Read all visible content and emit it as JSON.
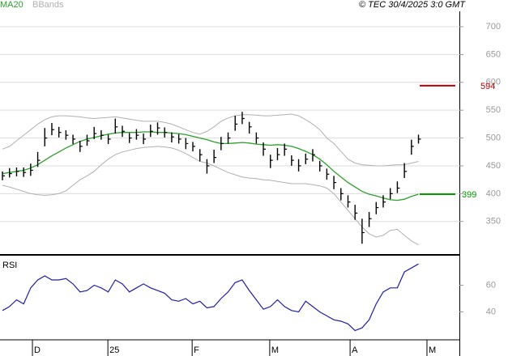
{
  "header": {
    "legend": [
      {
        "name": "MA20",
        "color": "#2ca02c"
      },
      {
        "name": "BBands",
        "color": "#b0b0b0"
      }
    ],
    "source": "© TEC 30/4/2025 3:0 GMT"
  },
  "chart_data": [
    {
      "type": "ohlc",
      "color": "#000000",
      "grid": true,
      "ylim": [
        290,
        748
      ],
      "yticks": [
        350,
        400,
        450,
        500,
        550,
        600,
        650,
        700
      ],
      "xlim": [
        -0.35,
        64.8
      ],
      "xticks": [
        {
          "value": 4.25,
          "label": "D"
        },
        {
          "value": 14.95,
          "label": "25"
        },
        {
          "value": 26.9,
          "label": "F"
        },
        {
          "value": 37.9,
          "label": "M"
        },
        {
          "value": 49.3,
          "label": "A"
        },
        {
          "value": 60.2,
          "label": "M"
        }
      ],
      "close": [
        432,
        436,
        440,
        438,
        442,
        460,
        500,
        515,
        510,
        505,
        498,
        485,
        495,
        508,
        505,
        498,
        520,
        512,
        500,
        505,
        498,
        512,
        518,
        510,
        502,
        498,
        490,
        485,
        470,
        450,
        465,
        490,
        500,
        525,
        535,
        520,
        500,
        480,
        460,
        470,
        480,
        460,
        450,
        462,
        470,
        450,
        435,
        420,
        400,
        385,
        365,
        330,
        355,
        375,
        385,
        400,
        410,
        440,
        485,
        498
      ],
      "high": [
        440,
        446,
        447,
        447,
        454,
        475,
        518,
        527,
        520,
        514,
        506,
        495,
        506,
        520,
        514,
        506,
        535,
        522,
        509,
        516,
        508,
        524,
        528,
        519,
        510,
        507,
        500,
        493,
        480,
        462,
        479,
        502,
        510,
        540,
        547,
        529,
        510,
        492,
        470,
        482,
        490,
        469,
        462,
        472,
        480,
        459,
        445,
        432,
        410,
        397,
        380,
        355,
        367,
        385,
        397,
        410,
        422,
        455,
        497,
        506
      ],
      "low": [
        424,
        429,
        431,
        430,
        432,
        448,
        485,
        505,
        501,
        497,
        489,
        475,
        486,
        498,
        497,
        489,
        508,
        502,
        491,
        497,
        489,
        502,
        506,
        501,
        492,
        490,
        480,
        476,
        458,
        436,
        455,
        478,
        490,
        513,
        525,
        508,
        490,
        468,
        446,
        460,
        468,
        450,
        440,
        453,
        458,
        440,
        425,
        408,
        388,
        375,
        353,
        310,
        340,
        363,
        375,
        390,
        401,
        428,
        470,
        490
      ],
      "ma": {
        "name": "MA20",
        "color": "#2ca02c",
        "values": [
          436,
          438,
          440,
          442,
          446,
          452,
          460,
          468,
          475,
          482,
          488,
          494,
          498,
          501,
          504,
          507,
          509,
          510,
          510,
          510,
          511,
          511,
          510,
          510,
          509,
          508,
          506,
          503,
          500,
          497,
          493,
          490,
          490,
          491,
          492,
          491,
          489,
          488,
          487,
          488,
          487,
          485,
          481,
          476,
          470,
          462,
          452,
          440,
          430,
          420,
          412,
          404,
          399,
          396,
          392,
          389,
          388,
          390,
          395,
          399
        ]
      },
      "bbands": {
        "name": "BBands",
        "color": "#b0b0b0",
        "upper": [
          480,
          485,
          495,
          505,
          515,
          525,
          533,
          538,
          540,
          540,
          539,
          538,
          536,
          535,
          536,
          537,
          538,
          536,
          534,
          532,
          530,
          530,
          530,
          528,
          525,
          520,
          515,
          510,
          507,
          512,
          520,
          530,
          536,
          540,
          542,
          542,
          541,
          540,
          540,
          541,
          542,
          543,
          540,
          533,
          525,
          515,
          500,
          490,
          476,
          462,
          455,
          452,
          451,
          450,
          450,
          451,
          452,
          452,
          455,
          458
        ],
        "lower": [
          415,
          412,
          408,
          404,
          400,
          398,
          397,
          398,
          400,
          405,
          415,
          425,
          432,
          440,
          452,
          462,
          470,
          475,
          478,
          481,
          483,
          484,
          485,
          484,
          482,
          478,
          472,
          465,
          458,
          455,
          450,
          444,
          438,
          434,
          430,
          428,
          427,
          425,
          424,
          422,
          420,
          418,
          418,
          418,
          416,
          414,
          410,
          400,
          385,
          370,
          355,
          340,
          328,
          322,
          325,
          334,
          336,
          325,
          315,
          308
        ]
      },
      "levels": [
        {
          "value": 594,
          "color": "#c00000"
        },
        {
          "value": 399,
          "color": "#009900"
        }
      ]
    },
    {
      "type": "line",
      "title": "RSI",
      "color": "#1f1fa8",
      "ylim": [
        19,
        81
      ],
      "yticks": [
        60,
        40
      ],
      "values": [
        41,
        44,
        49,
        46,
        58,
        64,
        67,
        64,
        64,
        65,
        61,
        55,
        56,
        60,
        58,
        55,
        64,
        61,
        55,
        58,
        61,
        58,
        56,
        54,
        49,
        48,
        50,
        46,
        48,
        43,
        44,
        50,
        55,
        62,
        64,
        56,
        49,
        42,
        44,
        49,
        44,
        41,
        40,
        48,
        44,
        40,
        37,
        34,
        33,
        31,
        26,
        28,
        34,
        46,
        55,
        58,
        58,
        70,
        73,
        76
      ]
    }
  ]
}
